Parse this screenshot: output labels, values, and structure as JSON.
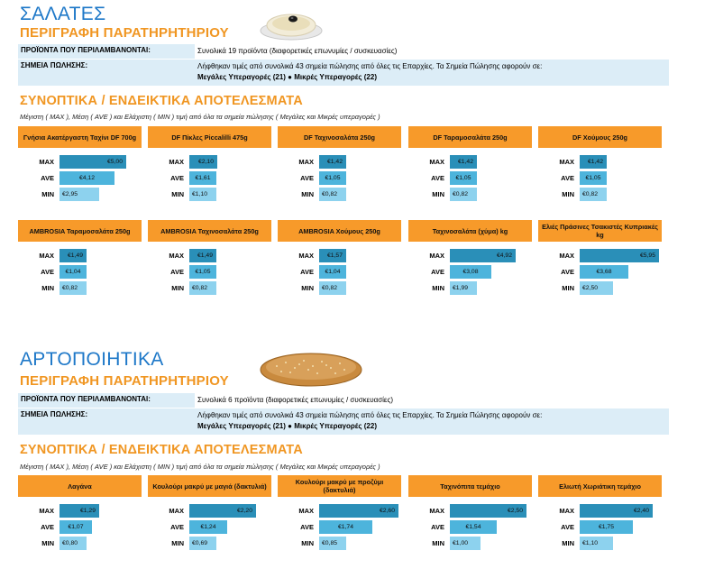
{
  "sections": [
    {
      "title": "ΣΑΛΑΤΕΣ",
      "subtitle": "ΠΕΡΙΓΡΑΦΗ ΠΑΡΑΤΗΡΗΤΗΡΙΟΥ",
      "products_label": "ΠΡΟΪΟΝΤΑ ΠΟΥ ΠΕΡΙΛΑΜΒΑΝΟΝΤΑΙ:",
      "products_value": "Συνολικά 19 προϊόντα (διαφορετικές επωνυμίες / συσκευασίες)",
      "points_label": "ΣΗΜΕΙΑ ΠΩΛΗΣΗΣ:",
      "points_value": "Λήφθηκαν τιμές από συνολικά 43 σημεία πώλησης από όλες τις Επαρχίες. Τα Σημεία Πώλησης αφορούν σε:",
      "points_value2": "Μεγάλες Υπεραγορές (21) ● Μικρές Υπεραγορές (22)",
      "results_title": "ΣΥΝΟΠΤΙΚΑ / ΕΝΔΕΙΚΤΙΚΑ ΑΠΟΤΕΛΕΣΜΑΤΑ",
      "results_note": "Μέγιστη ( MAX ), Μέση ( AVE ) και Ελάχιστη ( MIN ) τιμή από όλα τα σημεία πώλησης ( Μεγάλες και Μικρές υπεραγορές )",
      "products": [
        {
          "name": "Γνήσια Ακατέργαστη Ταχίνι DF 700g",
          "max": "€5,00",
          "ave": "€4,12",
          "min": "€2,95",
          "vmax": 5.0,
          "vave": 4.12,
          "vmin": 2.95
        },
        {
          "name": "DF Πίκλες Piccalilli 475g",
          "max": "€2,10",
          "ave": "€1,61",
          "min": "€1,10",
          "vmax": 2.1,
          "vave": 1.61,
          "vmin": 1.1
        },
        {
          "name": "DF Ταχινοσαλάτα 250g",
          "max": "€1,42",
          "ave": "€1,05",
          "min": "€0,82",
          "vmax": 1.42,
          "vave": 1.05,
          "vmin": 0.82
        },
        {
          "name": "DF Ταραμοσαλάτα 250g",
          "max": "€1,42",
          "ave": "€1,05",
          "min": "€0,82",
          "vmax": 1.42,
          "vave": 1.05,
          "vmin": 0.82
        },
        {
          "name": "DF Χούμους 250g",
          "max": "€1,42",
          "ave": "€1,05",
          "min": "€0,82",
          "vmax": 1.42,
          "vave": 1.05,
          "vmin": 0.82
        },
        {
          "name": "AMBROSIA Ταραμοσαλάτα 250g",
          "max": "€1,49",
          "ave": "€1,04",
          "min": "€0,82",
          "vmax": 1.49,
          "vave": 1.04,
          "vmin": 0.82
        },
        {
          "name": "AMBROSIA Ταχινοσαλάτα 250g",
          "max": "€1,49",
          "ave": "€1,05",
          "min": "€0,82",
          "vmax": 1.49,
          "vave": 1.05,
          "vmin": 0.82
        },
        {
          "name": "AMBROSIA Χούμους 250g",
          "max": "€1,57",
          "ave": "€1,04",
          "min": "€0,82",
          "vmax": 1.57,
          "vave": 1.04,
          "vmin": 0.82
        },
        {
          "name": "Ταχινοσαλάτα (χύμα) kg",
          "max": "€4,92",
          "ave": "€3,08",
          "min": "€1,99",
          "vmax": 4.92,
          "vave": 3.08,
          "vmin": 1.99
        },
        {
          "name": "Ελιές Πράσινες Τσακιστές Κυπριακές kg",
          "max": "€5,95",
          "ave": "€3,68",
          "min": "€2,50",
          "vmax": 5.95,
          "vave": 3.68,
          "vmin": 2.5
        }
      ]
    },
    {
      "title": "ΑΡΤΟΠΟΙΗΤΙΚΑ",
      "subtitle": "ΠΕΡΙΓΡΑΦΗ ΠΑΡΑΤΗΡΗΤΗΡΙΟΥ",
      "products_label": "ΠΡΟΪΟΝΤΑ ΠΟΥ ΠΕΡΙΛΑΜΒΑΝΟΝΤΑΙ:",
      "products_value": "Συνολικά 6 προϊόντα (διαφορετικές επωνυμίες / συσκευασίες)",
      "points_label": "ΣΗΜΕΙΑ ΠΩΛΗΣΗΣ:",
      "points_value": "Λήφθηκαν τιμές από συνολικά 43 σημεία πώλησης από όλες τις Επαρχίες. Τα Σημεία Πώλησης αφορούν σε:",
      "points_value2": "Μεγάλες Υπεραγορές (21) ● Μικρές Υπεραγορές (22)",
      "results_title": "ΣΥΝΟΠΤΙΚΑ / ΕΝΔΕΙΚΤΙΚΑ ΑΠΟΤΕΛΕΣΜΑΤΑ",
      "results_note": "Μέγιστη ( MAX ), Μέση ( AVE ) και Ελάχιστη ( MIN ) τιμή από όλα τα σημεία πώλησης ( Μεγάλες και Μικρές υπεραγορές )",
      "products": [
        {
          "name": "Λαγάνα",
          "max": "€1,29",
          "ave": "€1,07",
          "min": "€0,80",
          "vmax": 1.29,
          "vave": 1.07,
          "vmin": 0.8
        },
        {
          "name": "Κουλούρι μακρύ με μαγιά (δακτυλιά)",
          "max": "€2,20",
          "ave": "€1,24",
          "min": "€0,69",
          "vmax": 2.2,
          "vave": 1.24,
          "vmin": 0.69
        },
        {
          "name": "Κουλούρι μακρύ με προζύμι (δακτυλιά)",
          "max": "€2,60",
          "ave": "€1,74",
          "min": "€0,85",
          "vmax": 2.6,
          "vave": 1.74,
          "vmin": 0.85
        },
        {
          "name": "Ταχινόπιτα τεμάχιο",
          "max": "€2,50",
          "ave": "€1,54",
          "min": "€1,00",
          "vmax": 2.5,
          "vave": 1.54,
          "vmin": 1.0
        },
        {
          "name": "Ελιωτή Χωριάτικη τεμάχιο",
          "max": "€2,40",
          "ave": "€1,75",
          "min": "€1,10",
          "vmax": 2.4,
          "vave": 1.75,
          "vmin": 1.1
        }
      ]
    }
  ],
  "row_labels": {
    "max": "MAX",
    "ave": "AVE",
    "min": "MIN"
  },
  "colors": {
    "title": "#1e78c8",
    "accent": "#f09622",
    "header": "#f79a2a",
    "bar_max": "#2a8fb8",
    "bar_ave": "#4db4dc",
    "bar_min": "#8dd2ee"
  },
  "images": {
    "salad": "bowl-of-dip-image",
    "bread": "sesame-bread-loaf-image"
  }
}
